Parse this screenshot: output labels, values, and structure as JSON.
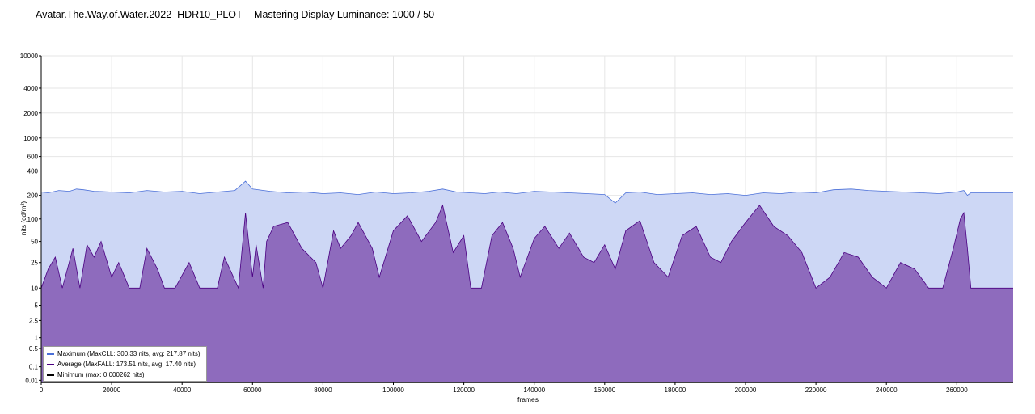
{
  "title": "Avatar.The.Way.of.Water.2022  HDR10_PLOT -  Mastering Display Luminance: 1000 / 50",
  "chart_data": {
    "type": "area",
    "title": "Avatar.The.Way.of.Water.2022  HDR10_PLOT -  Mastering Display Luminance: 1000 / 50",
    "xlabel": "frames",
    "ylabel": "nits (cd/m²)",
    "y_scale": "pq",
    "xlim": [
      0,
      276000
    ],
    "ylim": [
      0.005,
      10000
    ],
    "x_ticks": [
      0,
      20000,
      40000,
      60000,
      80000,
      100000,
      120000,
      140000,
      160000,
      180000,
      200000,
      220000,
      240000,
      260000
    ],
    "x_tick_labels": [
      "0",
      "20000",
      "40000",
      "60000",
      "80000",
      "100000",
      "120000",
      "140000",
      "160000",
      "180000",
      "200000",
      "220000",
      "240000",
      "260000"
    ],
    "y_ticks": [
      0.01,
      0.1,
      0.5,
      1,
      2.5,
      5,
      10,
      25,
      50,
      100,
      200,
      400,
      600,
      1000,
      2000,
      4000,
      10000
    ],
    "y_tick_labels": [
      "0.01",
      "0.1",
      "0.5",
      "1",
      "2.5",
      "5",
      "10",
      "25",
      "50",
      "100",
      "200",
      "400",
      "600",
      "1000",
      "2000",
      "4000",
      "10000"
    ],
    "grid": true,
    "legend_position": "bottom-left",
    "series": [
      {
        "name": "Maximum (MaxCLL: 300.33 nits, avg: 217.87 nits)",
        "color": "#4a6fd8",
        "fill": "#cdd7f5",
        "x": [
          0,
          2000,
          5000,
          8000,
          10000,
          12000,
          15000,
          20000,
          25000,
          30000,
          35000,
          40000,
          45000,
          50000,
          55000,
          58000,
          60000,
          65000,
          70000,
          75000,
          80000,
          85000,
          90000,
          95000,
          100000,
          105000,
          110000,
          114000,
          118000,
          122000,
          126000,
          130000,
          135000,
          140000,
          145000,
          150000,
          155000,
          160000,
          163000,
          166000,
          170000,
          175000,
          180000,
          185000,
          190000,
          195000,
          200000,
          205000,
          210000,
          215000,
          220000,
          225000,
          230000,
          235000,
          240000,
          245000,
          250000,
          255000,
          260000,
          262000,
          263000,
          264000,
          276000
        ],
        "y": [
          220,
          215,
          230,
          225,
          240,
          235,
          225,
          220,
          215,
          230,
          220,
          225,
          210,
          220,
          230,
          300,
          240,
          225,
          215,
          220,
          210,
          215,
          205,
          220,
          210,
          215,
          225,
          240,
          220,
          215,
          210,
          220,
          210,
          225,
          220,
          215,
          210,
          205,
          160,
          215,
          220,
          205,
          210,
          215,
          205,
          210,
          200,
          215,
          210,
          220,
          215,
          235,
          240,
          230,
          225,
          220,
          215,
          210,
          220,
          230,
          200,
          215,
          215
        ]
      },
      {
        "name": "Average (MaxFALL: 173.51 nits, avg: 17.40 nits)",
        "color": "#4b0082",
        "fill": "#8e6bbd",
        "x": [
          0,
          2000,
          4000,
          6000,
          9000,
          11000,
          13000,
          15000,
          17000,
          20000,
          22000,
          25000,
          28000,
          30000,
          33000,
          35000,
          38000,
          42000,
          45000,
          50000,
          52000,
          56000,
          58000,
          60000,
          61000,
          63000,
          64000,
          66000,
          70000,
          74000,
          78000,
          80000,
          83000,
          85000,
          88000,
          90000,
          94000,
          96000,
          100000,
          104000,
          108000,
          112000,
          114000,
          117000,
          120000,
          122000,
          125000,
          128000,
          131000,
          134000,
          136000,
          140000,
          143000,
          147000,
          150000,
          154000,
          157000,
          160000,
          163000,
          166000,
          170000,
          174000,
          178000,
          182000,
          186000,
          190000,
          193000,
          196000,
          200000,
          204000,
          208000,
          212000,
          216000,
          220000,
          224000,
          228000,
          232000,
          236000,
          240000,
          244000,
          248000,
          252000,
          256000,
          259000,
          261000,
          262000,
          263000,
          264000,
          276000
        ],
        "y": [
          10,
          20,
          30,
          10,
          40,
          10,
          45,
          30,
          50,
          15,
          25,
          10,
          10,
          40,
          20,
          10,
          10,
          25,
          10,
          10,
          30,
          10,
          120,
          15,
          45,
          10,
          50,
          80,
          90,
          40,
          25,
          10,
          70,
          40,
          60,
          90,
          40,
          15,
          70,
          110,
          50,
          90,
          150,
          35,
          60,
          10,
          10,
          60,
          90,
          40,
          15,
          55,
          80,
          40,
          65,
          30,
          25,
          45,
          20,
          70,
          95,
          25,
          15,
          60,
          80,
          30,
          25,
          50,
          90,
          150,
          80,
          60,
          35,
          10,
          15,
          35,
          30,
          15,
          10,
          25,
          20,
          10,
          10,
          40,
          100,
          120,
          40,
          10,
          10
        ]
      },
      {
        "name": "Minimum (max: 0.000262 nits)",
        "color": "#000000",
        "x": [
          0,
          276000
        ],
        "y": [
          0.005,
          0.005
        ]
      }
    ]
  }
}
